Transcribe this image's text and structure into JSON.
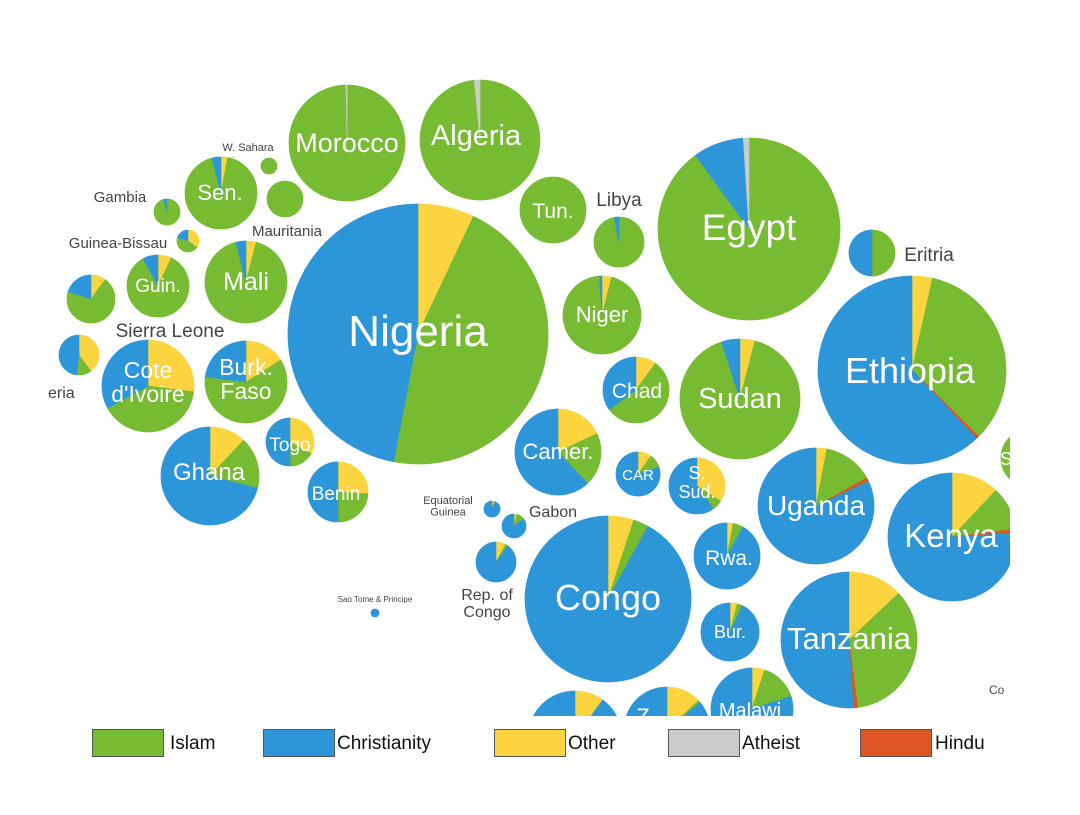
{
  "chart_data": {
    "type": "pie",
    "subtype": "packed bubble pie chart map",
    "colors": {
      "Islam": "#77bb33",
      "Christianity": "#2d96d9",
      "Other": "#fbd43f",
      "Atheist": "#cbcbcb",
      "Hindu": "#dd5522"
    },
    "legend": {
      "placement": "bottom",
      "entries": [
        {
          "key": "Islam",
          "label": "Islam",
          "color": "#77bb33"
        },
        {
          "key": "Christianity",
          "label": "Christianity",
          "color": "#2d96d9"
        },
        {
          "key": "Other",
          "label": "Other",
          "color": "#fbd43f"
        },
        {
          "key": "Atheist",
          "label": "Atheist",
          "color": "#cbcbcb"
        },
        {
          "key": "Hindu",
          "label": "Hindu",
          "color": "#dd5522"
        }
      ]
    },
    "series_order": [
      "Other",
      "Islam",
      "Hindu",
      "Christianity",
      "Atheist"
    ],
    "countries": [
      {
        "label": "Morocco",
        "Islam": 99.5,
        "Christianity": 0,
        "Other": 0.2,
        "Atheist": 0.3,
        "Hindu": 0
      },
      {
        "label": "Algeria",
        "Islam": 98.5,
        "Christianity": 0,
        "Other": 0,
        "Atheist": 1.5,
        "Hindu": 0
      },
      {
        "label": "W. Sahara",
        "Islam": 99,
        "Christianity": 0,
        "Other": 1,
        "Atheist": 0,
        "Hindu": 0
      },
      {
        "label": "",
        "Islam": 99,
        "Christianity": 0,
        "Other": 1,
        "Atheist": 0,
        "Hindu": 0
      },
      {
        "label": "Sen.",
        "Islam": 93,
        "Christianity": 4,
        "Other": 3,
        "Atheist": 0,
        "Hindu": 0
      },
      {
        "label": "Gambia",
        "Islam": 95,
        "Christianity": 4,
        "Other": 1,
        "Atheist": 0,
        "Hindu": 0
      },
      {
        "label": "Guinea-Bissau",
        "Islam": 45,
        "Christianity": 20,
        "Other": 35,
        "Atheist": 0,
        "Hindu": 0
      },
      {
        "label": "Mauritania",
        "Islam": 99.5,
        "Christianity": 0,
        "Other": 0.5,
        "Atheist": 0,
        "Hindu": 0
      },
      {
        "label": "Mali",
        "Islam": 92,
        "Christianity": 4,
        "Other": 4,
        "Atheist": 0,
        "Hindu": 0
      },
      {
        "label": "Guin.",
        "Islam": 85,
        "Christianity": 8,
        "Other": 7,
        "Atheist": 0,
        "Hindu": 0
      },
      {
        "label": "",
        "Islam": 70,
        "Christianity": 20,
        "Other": 10,
        "Atheist": 0,
        "Hindu": 0
      },
      {
        "label": "Sierra Leone",
        "Islam": 0,
        "Christianity": 0,
        "Other": 0,
        "Atheist": 0,
        "Hindu": 0
      },
      {
        "label": "",
        "Islam": 12,
        "Christianity": 48,
        "Other": 40,
        "Atheist": 0,
        "Hindu": 0
      },
      {
        "label": "eria",
        "Islam": 0,
        "Christianity": 0,
        "Other": 0,
        "Atheist": 0,
        "Hindu": 0
      },
      {
        "label": "Cote d'Ivoire",
        "Islam": 40,
        "Christianity": 33,
        "Other": 27,
        "Atheist": 0,
        "Hindu": 0
      },
      {
        "label": "Burk. Faso",
        "Islam": 61,
        "Christianity": 23,
        "Other": 16,
        "Atheist": 0,
        "Hindu": 0
      },
      {
        "label": "Nigeria",
        "Islam": 46,
        "Christianity": 47,
        "Other": 7,
        "Atheist": 0,
        "Hindu": 0
      },
      {
        "label": "Ghana",
        "Islam": 17,
        "Christianity": 71,
        "Other": 12,
        "Atheist": 0,
        "Hindu": 0
      },
      {
        "label": "Togo",
        "Islam": 17,
        "Christianity": 50,
        "Other": 33,
        "Atheist": 0,
        "Hindu": 0
      },
      {
        "label": "Benin",
        "Islam": 24,
        "Christianity": 50,
        "Other": 26,
        "Atheist": 0,
        "Hindu": 0
      },
      {
        "label": "Tun.",
        "Islam": 99.5,
        "Christianity": 0,
        "Other": 0.5,
        "Atheist": 0,
        "Hindu": 0
      },
      {
        "label": "Libya",
        "Islam": 97,
        "Christianity": 3,
        "Other": 0,
        "Atheist": 0,
        "Hindu": 0
      },
      {
        "label": "Niger",
        "Islam": 95,
        "Christianity": 1,
        "Other": 4,
        "Atheist": 0,
        "Hindu": 0
      },
      {
        "label": "Chad",
        "Islam": 55,
        "Christianity": 35,
        "Other": 10,
        "Atheist": 0,
        "Hindu": 0
      },
      {
        "label": "Camer.",
        "Islam": 20,
        "Christianity": 62,
        "Other": 18,
        "Atheist": 0,
        "Hindu": 0
      },
      {
        "label": "CAR",
        "Islam": 10,
        "Christianity": 80,
        "Other": 10,
        "Atheist": 0,
        "Hindu": 0
      },
      {
        "label": "Equatorial Guinea",
        "Islam": 2,
        "Christianity": 93,
        "Other": 5,
        "Atheist": 0,
        "Hindu": 0
      },
      {
        "label": "Gabon",
        "Islam": 11,
        "Christianity": 85,
        "Other": 4,
        "Atheist": 0,
        "Hindu": 0
      },
      {
        "label": "Rep. of Congo",
        "Islam": 2,
        "Christianity": 90,
        "Other": 8,
        "Atheist": 0,
        "Hindu": 0
      },
      {
        "label": "Sao Tome & Principe",
        "Islam": 0,
        "Christianity": 100,
        "Other": 0,
        "Atheist": 0,
        "Hindu": 0
      },
      {
        "label": "Congo",
        "Islam": 3,
        "Christianity": 92,
        "Other": 5,
        "Atheist": 0,
        "Hindu": 0
      },
      {
        "label": "Egypt",
        "Islam": 90,
        "Christianity": 9,
        "Other": 0,
        "Atheist": 1,
        "Hindu": 0
      },
      {
        "label": "Sudan",
        "Islam": 91,
        "Christianity": 5,
        "Other": 4,
        "Atheist": 0,
        "Hindu": 0
      },
      {
        "label": "Eritria",
        "Islam": 50,
        "Christianity": 50,
        "Other": 0,
        "Atheist": 0,
        "Hindu": 0
      },
      {
        "label": "Ethiopia",
        "Islam": 34,
        "Christianity": 62,
        "Other": 3.5,
        "Atheist": 0,
        "Hindu": 0.5
      },
      {
        "label": "S. Sud.",
        "Islam": 6,
        "Christianity": 60,
        "Other": 34,
        "Atheist": 0,
        "Hindu": 0
      },
      {
        "label": "Uganda",
        "Islam": 14,
        "Christianity": 82,
        "Other": 3,
        "Atheist": 0,
        "Hindu": 1
      },
      {
        "label": "Kenya",
        "Islam": 11,
        "Christianity": 76,
        "Other": 12,
        "Atheist": 0,
        "Hindu": 1
      },
      {
        "label": "Rwa.",
        "Islam": 5,
        "Christianity": 92,
        "Other": 3,
        "Atheist": 0,
        "Hindu": 0
      },
      {
        "label": "Bur.",
        "Islam": 3,
        "Christianity": 93,
        "Other": 4,
        "Atheist": 0,
        "Hindu": 0
      },
      {
        "label": "Tanzania",
        "Islam": 35,
        "Christianity": 51,
        "Other": 13,
        "Atheist": 0,
        "Hindu": 1
      },
      {
        "label": "Malawi",
        "Islam": 15,
        "Christianity": 80,
        "Other": 5,
        "Atheist": 0,
        "Hindu": 0
      },
      {
        "label": "Z",
        "Islam": 1,
        "Christianity": 86,
        "Other": 13,
        "Atheist": 0,
        "Hindu": 0
      },
      {
        "label": "",
        "Islam": 0,
        "Christianity": 90,
        "Other": 10,
        "Atheist": 0,
        "Hindu": 0
      },
      {
        "label": "",
        "Islam": 5,
        "Christianity": 90,
        "Other": 5,
        "Atheist": 0,
        "Hindu": 0
      },
      {
        "label": "S",
        "Islam": 99,
        "Christianity": 0,
        "Other": 1,
        "Atheist": 0,
        "Hindu": 0
      },
      {
        "label": "Co",
        "Islam": 0,
        "Christianity": 0,
        "Other": 0,
        "Atheist": 0,
        "Hindu": 0
      },
      {
        "label": "",
        "Islam": 0,
        "Christianity": 0,
        "Other": 0,
        "Atheist": 0,
        "Hindu": 0
      }
    ]
  }
}
